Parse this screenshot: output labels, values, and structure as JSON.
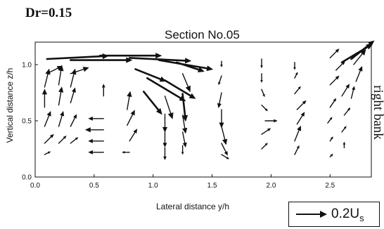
{
  "figure": {
    "dr_label": "Dr=0.15",
    "side_label": "right bank",
    "legend_label": "0.2U",
    "legend_subscript": "s"
  },
  "chart_data": {
    "type": "vector field",
    "title": "Section No.05",
    "xlabel": "Lateral distance y/h",
    "ylabel": "Vertical distance z/h",
    "xlim": [
      0.0,
      2.85
    ],
    "ylim": [
      0.0,
      1.2
    ],
    "xticks": [
      "0.0",
      "0.5",
      "1.0",
      "1.5",
      "2.0",
      "2.5"
    ],
    "yticks": [
      "0.0",
      "0.5",
      "1.0"
    ],
    "grid": false,
    "reference_vector_magnitude": 0.2,
    "vectors": [
      {
        "x": 0.1,
        "z": 1.05,
        "u": 0.4,
        "v": 0.02
      },
      {
        "x": 0.3,
        "z": 1.04,
        "u": 0.4,
        "v": 0.0
      },
      {
        "x": 0.55,
        "z": 1.08,
        "u": 0.4,
        "v": 0.0
      },
      {
        "x": 0.8,
        "z": 1.06,
        "u": 0.4,
        "v": -0.02
      },
      {
        "x": 1.05,
        "z": 1.04,
        "u": 0.35,
        "v": -0.06
      },
      {
        "x": 1.2,
        "z": 1.02,
        "u": 0.18,
        "v": -0.06
      },
      {
        "x": 0.1,
        "z": 0.92,
        "u": 0.1,
        "v": 0.05
      },
      {
        "x": 0.3,
        "z": 0.92,
        "u": 0.12,
        "v": 0.04
      },
      {
        "x": 0.85,
        "z": 0.96,
        "u": 0.2,
        "v": -0.08
      },
      {
        "x": 0.95,
        "z": 0.88,
        "u": 0.25,
        "v": -0.15
      },
      {
        "x": 1.1,
        "z": 0.86,
        "u": 0.2,
        "v": -0.12
      },
      {
        "x": 1.25,
        "z": 0.92,
        "u": 0.05,
        "v": -0.12
      },
      {
        "x": 0.08,
        "z": 0.8,
        "u": 0.03,
        "v": 0.12
      },
      {
        "x": 0.2,
        "z": 0.82,
        "u": 0.02,
        "v": 0.13
      },
      {
        "x": 0.3,
        "z": 0.8,
        "u": 0.03,
        "v": 0.12
      },
      {
        "x": 0.92,
        "z": 0.76,
        "u": 0.12,
        "v": -0.15
      },
      {
        "x": 1.1,
        "z": 0.72,
        "u": 0.05,
        "v": -0.15
      },
      {
        "x": 1.25,
        "z": 0.74,
        "u": 0.02,
        "v": -0.18
      },
      {
        "x": 0.08,
        "z": 0.62,
        "u": 0.0,
        "v": 0.12
      },
      {
        "x": 0.2,
        "z": 0.64,
        "u": 0.02,
        "v": 0.12
      },
      {
        "x": 0.3,
        "z": 0.66,
        "u": 0.03,
        "v": 0.1
      },
      {
        "x": 0.58,
        "z": 0.72,
        "u": 0.0,
        "v": 0.08
      },
      {
        "x": 0.78,
        "z": 0.6,
        "u": 0.02,
        "v": 0.12
      },
      {
        "x": 1.1,
        "z": 0.56,
        "u": 0.0,
        "v": -0.12
      },
      {
        "x": 1.25,
        "z": 0.55,
        "u": 0.02,
        "v": -0.12
      },
      {
        "x": 0.08,
        "z": 0.45,
        "u": 0.04,
        "v": 0.1
      },
      {
        "x": 0.2,
        "z": 0.45,
        "u": 0.03,
        "v": 0.1
      },
      {
        "x": 0.3,
        "z": 0.45,
        "u": 0.04,
        "v": 0.08
      },
      {
        "x": 0.58,
        "z": 0.52,
        "u": -0.1,
        "v": 0.0
      },
      {
        "x": 0.58,
        "z": 0.42,
        "u": -0.12,
        "v": 0.0
      },
      {
        "x": 0.78,
        "z": 0.46,
        "u": 0.05,
        "v": 0.1
      },
      {
        "x": 1.1,
        "z": 0.4,
        "u": 0.0,
        "v": -0.1
      },
      {
        "x": 1.25,
        "z": 0.4,
        "u": 0.02,
        "v": -0.1
      },
      {
        "x": 0.08,
        "z": 0.3,
        "u": 0.06,
        "v": 0.06
      },
      {
        "x": 0.2,
        "z": 0.3,
        "u": 0.05,
        "v": 0.05
      },
      {
        "x": 0.3,
        "z": 0.3,
        "u": 0.05,
        "v": 0.04
      },
      {
        "x": 0.58,
        "z": 0.32,
        "u": -0.1,
        "v": 0.0
      },
      {
        "x": 0.8,
        "z": 0.32,
        "u": 0.05,
        "v": 0.08
      },
      {
        "x": 1.1,
        "z": 0.26,
        "u": 0.0,
        "v": -0.08
      },
      {
        "x": 1.25,
        "z": 0.28,
        "u": 0.0,
        "v": -0.06
      },
      {
        "x": 0.58,
        "z": 0.22,
        "u": -0.1,
        "v": 0.0
      },
      {
        "x": 0.8,
        "z": 0.22,
        "u": -0.05,
        "v": 0.0
      },
      {
        "x": 0.08,
        "z": 0.2,
        "u": 0.04,
        "v": 0.02
      },
      {
        "x": 1.58,
        "z": 1.03,
        "u": 0.0,
        "v": -0.04
      },
      {
        "x": 1.58,
        "z": 0.9,
        "u": -0.02,
        "v": -0.06
      },
      {
        "x": 1.58,
        "z": 0.75,
        "u": -0.02,
        "v": -0.1
      },
      {
        "x": 1.58,
        "z": 0.6,
        "u": 0.0,
        "v": -0.12
      },
      {
        "x": 1.58,
        "z": 0.45,
        "u": 0.03,
        "v": -0.12
      },
      {
        "x": 1.58,
        "z": 0.3,
        "u": 0.04,
        "v": -0.08
      },
      {
        "x": 1.58,
        "z": 0.2,
        "u": 0.05,
        "v": -0.03
      },
      {
        "x": 1.92,
        "z": 1.05,
        "u": 0.0,
        "v": -0.06
      },
      {
        "x": 1.92,
        "z": 0.92,
        "u": 0.0,
        "v": -0.06
      },
      {
        "x": 1.92,
        "z": 0.78,
        "u": 0.02,
        "v": -0.05
      },
      {
        "x": 1.92,
        "z": 0.64,
        "u": 0.04,
        "v": -0.04
      },
      {
        "x": 1.95,
        "z": 0.5,
        "u": 0.08,
        "v": 0.0
      },
      {
        "x": 1.92,
        "z": 0.38,
        "u": 0.06,
        "v": 0.04
      },
      {
        "x": 1.92,
        "z": 0.25,
        "u": 0.04,
        "v": 0.04
      },
      {
        "x": 2.2,
        "z": 1.02,
        "u": 0.0,
        "v": -0.05
      },
      {
        "x": 2.2,
        "z": 0.88,
        "u": 0.02,
        "v": 0.04
      },
      {
        "x": 2.2,
        "z": 0.74,
        "u": 0.04,
        "v": 0.05
      },
      {
        "x": 2.22,
        "z": 0.6,
        "u": 0.06,
        "v": 0.06
      },
      {
        "x": 2.22,
        "z": 0.47,
        "u": 0.05,
        "v": 0.08
      },
      {
        "x": 2.2,
        "z": 0.32,
        "u": 0.04,
        "v": 0.1
      },
      {
        "x": 2.2,
        "z": 0.2,
        "u": 0.03,
        "v": 0.06
      },
      {
        "x": 2.5,
        "z": 1.06,
        "u": 0.06,
        "v": 0.06
      },
      {
        "x": 2.55,
        "z": 0.95,
        "u": 0.06,
        "v": 0.06
      },
      {
        "x": 2.5,
        "z": 0.82,
        "u": 0.06,
        "v": 0.06
      },
      {
        "x": 2.6,
        "z": 0.72,
        "u": 0.05,
        "v": 0.08
      },
      {
        "x": 2.5,
        "z": 0.62,
        "u": 0.04,
        "v": 0.06
      },
      {
        "x": 2.62,
        "z": 0.55,
        "u": 0.04,
        "v": 0.05
      },
      {
        "x": 2.48,
        "z": 0.48,
        "u": 0.03,
        "v": 0.04
      },
      {
        "x": 2.6,
        "z": 0.4,
        "u": 0.03,
        "v": 0.04
      },
      {
        "x": 2.5,
        "z": 0.32,
        "u": 0.02,
        "v": 0.03
      },
      {
        "x": 2.62,
        "z": 0.26,
        "u": 0.0,
        "v": 0.04
      },
      {
        "x": 2.5,
        "z": 0.18,
        "u": 0.02,
        "v": 0.02
      },
      {
        "x": 2.7,
        "z": 1.0,
        "u": 0.08,
        "v": 0.1
      },
      {
        "x": 2.72,
        "z": 0.85,
        "u": 0.04,
        "v": 0.1
      },
      {
        "x": 2.68,
        "z": 0.7,
        "u": 0.02,
        "v": 0.08
      },
      {
        "x": 2.6,
        "z": 1.02,
        "u": 0.2,
        "v": 0.12
      },
      {
        "x": 2.68,
        "z": 1.05,
        "u": 0.15,
        "v": 0.12
      }
    ]
  }
}
